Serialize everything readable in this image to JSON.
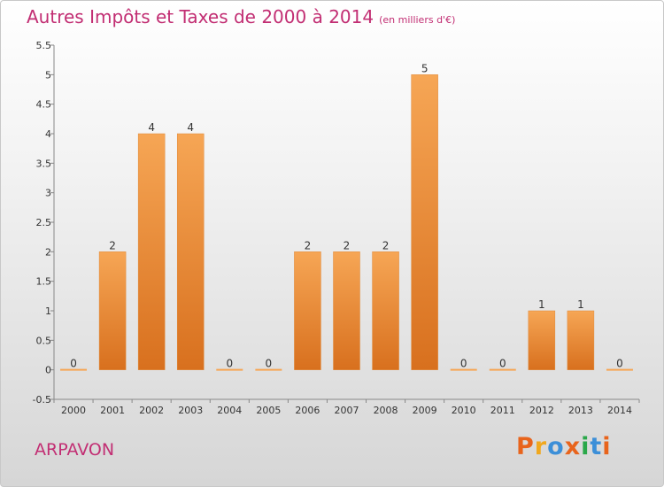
{
  "header": {
    "title": "Autres Impôts et Taxes de 2000 à 2014",
    "subtitle": "(en milliers d'€)"
  },
  "footer": {
    "commune": "ARPAVON",
    "logo": "Proxiti"
  },
  "colors": {
    "title": "#c22e73",
    "bar_light": "#f6a655",
    "bar_dark": "#d8701e",
    "axis": "#888888",
    "logo_letters": [
      "#e8641c",
      "#f0a81e",
      "#3c8fd8",
      "#e8641c",
      "#2aa84a",
      "#3c8fd8",
      "#e8641c"
    ]
  },
  "chart_data": {
    "type": "bar",
    "categories": [
      "2000",
      "2001",
      "2002",
      "2003",
      "2004",
      "2005",
      "2006",
      "2007",
      "2008",
      "2009",
      "2010",
      "2011",
      "2012",
      "2013",
      "2014"
    ],
    "values": [
      0,
      2,
      4,
      4,
      0,
      0,
      2,
      2,
      2,
      5,
      0,
      0,
      1,
      1,
      0
    ],
    "data_labels": [
      "0",
      "2",
      "4",
      "4",
      "0",
      "0",
      "2",
      "2",
      "2",
      "5",
      "0",
      "0",
      "1",
      "1",
      "0"
    ],
    "ylim": [
      -0.5,
      5.5
    ],
    "yticks": [
      "-0.5",
      "0",
      "0.5",
      "1",
      "1.5",
      "2",
      "2.5",
      "3",
      "3.5",
      "4",
      "4.5",
      "5",
      "5.5"
    ],
    "grid": false,
    "legend": "none"
  }
}
